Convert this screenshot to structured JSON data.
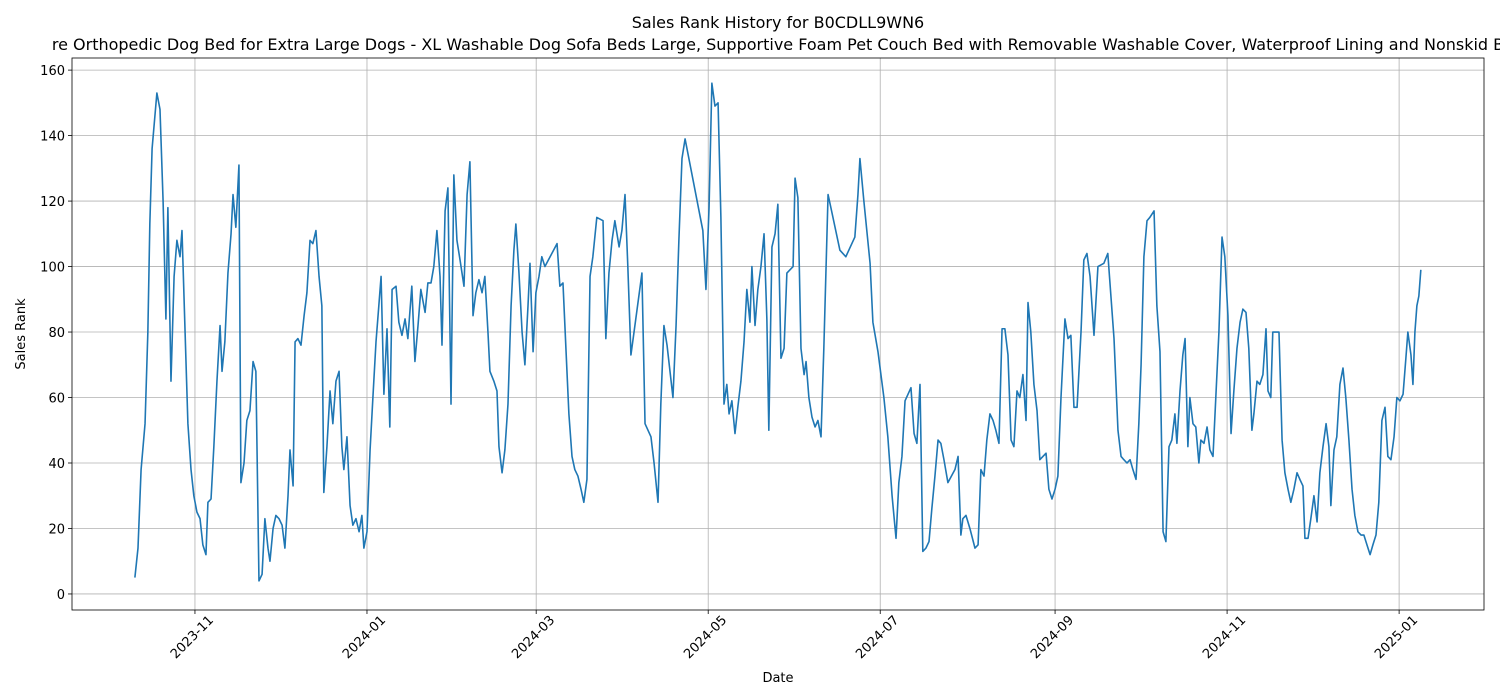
{
  "chart_data": {
    "type": "line",
    "title": "Sales Rank History for B0CDLL9WN6",
    "subtitle": "re Orthopedic Dog Bed for Extra Large Dogs - XL Washable Dog Sofa Beds Large, Supportive Foam Pet Couch Bed with Removable Washable Cover, Waterproof Lining and Nonskid B",
    "xlabel": "Date",
    "ylabel": "Sales Rank",
    "color": "#1f77b4",
    "grid": true,
    "x": [
      -21.3,
      -20.2,
      -19.1,
      -17.7,
      -16.7,
      -16.0,
      -15.2,
      -13.5,
      -12.4,
      -11.3,
      -10.3,
      -9.6,
      -8.5,
      -7.4,
      -6.4,
      -5.3,
      -4.6,
      -3.5,
      -2.5,
      -1.4,
      -0.4,
      0.7,
      1.8,
      2.8,
      3.9,
      4.6,
      5.7,
      6.7,
      7.8,
      8.9,
      9.6,
      10.6,
      11.7,
      12.8,
      13.5,
      14.5,
      15.6,
      16.3,
      17.4,
      18.4,
      19.5,
      20.6,
      21.6,
      22.7,
      23.8,
      24.8,
      25.9,
      26.6,
      27.7,
      28.7,
      29.8,
      30.9,
      31.9,
      33.0,
      33.7,
      34.8,
      35.5,
      36.5,
      37.6,
      38.7,
      39.7,
      40.8,
      41.8,
      42.9,
      44.0,
      45.0,
      45.7,
      46.8,
      47.9,
      48.9,
      50.0,
      51.1,
      52.1,
      52.8,
      53.9,
      55.0,
      56.0,
      57.1,
      58.2,
      59.2,
      59.9,
      61.0,
      62.1,
      63.1,
      64.2,
      65.2,
      66.0,
      67.0,
      68.1,
      69.1,
      69.9,
      71.3,
      72.3,
      73.4,
      74.5,
      75.5,
      76.9,
      78.0,
      79.1,
      80.1,
      81.6,
      82.6,
      83.7,
      84.7,
      85.8,
      86.9,
      87.6,
      88.7,
      89.7,
      90.8,
      91.8,
      92.9,
      94.0,
      95.4,
      96.5,
      97.5,
      98.6,
      99.6,
      100.7,
      101.8,
      102.8,
      103.9,
      104.6,
      106.0,
      107.1,
      107.8,
      108.9,
      109.9,
      111.0,
      112.1,
      113.1,
      113.8,
      114.9,
      116.0,
      117.0,
      118.1,
      118.8,
      119.9,
      120.9,
      122.0,
      123.0,
      124.1,
      128.4,
      129.4,
      130.5,
      131.6,
      132.6,
      133.7,
      134.7,
      135.8,
      136.9,
      137.9,
      139.0,
      140.1,
      141.1,
      142.5,
      144.7,
      145.7,
      146.8,
      147.9,
      148.9,
      150.4,
      151.4,
      152.5,
      153.5,
      154.6,
      155.7,
      158.5,
      159.6,
      161.7,
      162.8,
      164.2,
      165.2,
      166.3,
      167.4,
      169.5,
      170.6,
      171.6,
      172.7,
      173.8,
      180.1,
      181.2,
      182.3,
      183.3,
      184.4,
      185.5,
      186.5,
      187.6,
      188.6,
      189.4,
      190.4,
      191.5,
      192.5,
      193.6,
      194.7,
      195.7,
      196.8,
      197.5,
      198.6,
      199.6,
      200.7,
      201.8,
      202.8,
      203.5,
      204.6,
      205.7,
      206.7,
      207.8,
      208.9,
      209.9,
      212.1,
      212.8,
      213.8,
      214.9,
      216.0,
      216.7,
      217.7,
      218.8,
      219.9,
      220.9,
      222.0,
      223.0,
      224.5,
      225.5,
      228.7,
      230.8,
      234.0,
      235.1,
      235.8,
      237.2,
      239.4,
      240.4,
      242.2,
      244.3,
      245.7,
      247.2,
      248.6,
      249.6,
      250.7,
      251.8,
      253.9,
      255.0,
      256.0,
      257.1,
      258.1,
      259.2,
      260.3,
      261.3,
      262.4,
      263.5,
      264.5,
      265.6,
      267.0,
      269.5,
      270.6,
      271.6,
      272.3,
      273.4,
      274.8,
      276.6,
      277.7,
      278.7,
      279.8,
      280.8,
      281.9,
      283.0,
      284.0,
      285.1,
      286.2,
      287.2,
      288.3,
      289.4,
      290.4,
      291.5,
      292.5,
      293.6,
      294.7,
      295.4,
      296.4,
      297.5,
      298.6,
      299.6,
      300.7,
      301.8,
      302.8,
      303.9,
      305.0,
      306.0,
      307.1,
      308.5,
      309.6,
      310.6,
      311.7,
      312.8,
      314.2,
      315.2,
      316.3,
      317.4,
      318.8,
      320.2,
      322.3,
      323.7,
      325.9,
      327.3,
      328.4,
      329.4,
      330.5,
      331.6,
      332.6,
      333.7,
      334.7,
      335.5,
      336.5,
      337.6,
      338.6,
      340.1,
      341.1,
      342.2,
      343.3,
      344.3,
      345.4,
      346.4,
      347.5,
      348.2,
      349.3,
      350.3,
      351.1,
      352.1,
      352.8,
      353.9,
      354.9,
      356.0,
      356.7,
      357.8,
      358.9,
      359.9,
      361.0,
      362.0,
      363.1,
      364.2,
      365.2,
      366.3,
      367.4,
      368.4,
      369.5,
      370.6,
      371.6,
      372.7,
      373.7,
      374.8,
      375.5,
      376.6,
      377.6,
      378.7,
      379.8,
      380.5,
      381.5,
      382.2,
      384.4,
      385.5,
      386.5,
      387.6,
      388.6,
      389.7,
      390.8,
      391.8,
      392.9,
      393.6,
      394.7,
      395.7,
      396.8,
      397.9,
      398.9,
      400.0,
      401.1,
      402.1,
      402.8,
      403.9,
      404.9,
      406.0,
      407.1,
      408.1,
      409.2,
      410.3,
      411.3,
      412.4,
      413.5,
      414.5,
      415.6,
      416.7,
      417.7,
      418.8,
      419.8,
      420.9,
      422.0,
      423.0,
      424.1,
      425.2,
      426.2,
      427.3,
      428.4,
      429.4,
      430.1,
      431.2,
      431.9,
      432.6,
      433.3,
      434.0,
      434.7
    ],
    "values": [
      5,
      14,
      38,
      52,
      80,
      113,
      136,
      153,
      148,
      120,
      84,
      118,
      65,
      97,
      108,
      103,
      111,
      80,
      52,
      38,
      30,
      25,
      23,
      15,
      12,
      28,
      29,
      45,
      65,
      82,
      68,
      77,
      98,
      110,
      122,
      112,
      131,
      34,
      40,
      53,
      56,
      71,
      68,
      4,
      6,
      23,
      14,
      10,
      20,
      24,
      23,
      21,
      14,
      30,
      44,
      33,
      77,
      78,
      76,
      85,
      92,
      108,
      107,
      111,
      97,
      88,
      31,
      45,
      62,
      52,
      65,
      68,
      45,
      38,
      48,
      27,
      21,
      23,
      19,
      24,
      14,
      19,
      44,
      60,
      77,
      88,
      97,
      61,
      81,
      51,
      93,
      94,
      83,
      79,
      84,
      78,
      94,
      71,
      82,
      93,
      86,
      95,
      95,
      100,
      111,
      97,
      76,
      117,
      124,
      58,
      128,
      108,
      102,
      94,
      122,
      132,
      85,
      92,
      96,
      92,
      97,
      80,
      68,
      65,
      62,
      45,
      37,
      44,
      58,
      88,
      105,
      113,
      98,
      80,
      70,
      88,
      101,
      74,
      92,
      97,
      103,
      100,
      107,
      94,
      95,
      74,
      55,
      42,
      38,
      36,
      32,
      28,
      35,
      97,
      103,
      115,
      114,
      78,
      98,
      108,
      114,
      106,
      111,
      122,
      100,
      73,
      80,
      98,
      52,
      48,
      40,
      28,
      58,
      82,
      76,
      60,
      82,
      108,
      133,
      139,
      111,
      93,
      118,
      156,
      149,
      150,
      115,
      58,
      64,
      55,
      59,
      49,
      57,
      65,
      77,
      93,
      83,
      100,
      82,
      93,
      100,
      110,
      84,
      50,
      106,
      110,
      119,
      72,
      75,
      98,
      100,
      127,
      121,
      75,
      67,
      71,
      60,
      54,
      51,
      53,
      48,
      75,
      122,
      118,
      105,
      103,
      109,
      122,
      133,
      120,
      101,
      83,
      74,
      60,
      48,
      30,
      17,
      34,
      42,
      59,
      63,
      49,
      46,
      64,
      13,
      14,
      16,
      26,
      36,
      47,
      46,
      41,
      34,
      38,
      42,
      18,
      23,
      24,
      20,
      14,
      15,
      38,
      36,
      47,
      55,
      53,
      50,
      46,
      81,
      81,
      73,
      47,
      45,
      62,
      60,
      67,
      53,
      89,
      80,
      64,
      56,
      41,
      42,
      43,
      32,
      29,
      32,
      36,
      60,
      84,
      78,
      79,
      57,
      57,
      80,
      102,
      104,
      97,
      79,
      100,
      101,
      104,
      78,
      50,
      42,
      41,
      40,
      41,
      38,
      35,
      52,
      70,
      103,
      114,
      115,
      117,
      88,
      74,
      19,
      16,
      45,
      47,
      55,
      46,
      62,
      73,
      78,
      45,
      60,
      52,
      51,
      40,
      47,
      46,
      51,
      44,
      42,
      60,
      80,
      109,
      103,
      85,
      49,
      62,
      75,
      83,
      87,
      86,
      75,
      50,
      55,
      65,
      64,
      67,
      81,
      62,
      60,
      80,
      80,
      47,
      37,
      32,
      28,
      32,
      37,
      35,
      33,
      17,
      17,
      23,
      30,
      22,
      37,
      45,
      52,
      45,
      27,
      44,
      48,
      64,
      69,
      60,
      47,
      32,
      24,
      19,
      18,
      18,
      15,
      12,
      15,
      18,
      28,
      53,
      57,
      42,
      41,
      48,
      60,
      59,
      61,
      72,
      80,
      73,
      64,
      80,
      88,
      91,
      99
    ],
    "xlim": [
      -43.6,
      457.1
    ],
    "xticks": [
      {
        "value": 0,
        "label": "2023-11"
      },
      {
        "value": 61,
        "label": "2024-01"
      },
      {
        "value": 121,
        "label": "2024-03"
      },
      {
        "value": 182,
        "label": "2024-05"
      },
      {
        "value": 243,
        "label": "2024-07"
      },
      {
        "value": 305,
        "label": "2024-09"
      },
      {
        "value": 366,
        "label": "2024-11"
      },
      {
        "value": 427,
        "label": "2025-01"
      }
    ],
    "ylim": [
      -4.9,
      163.7
    ],
    "yticks": [
      0,
      20,
      40,
      60,
      80,
      100,
      120,
      140,
      160
    ]
  }
}
